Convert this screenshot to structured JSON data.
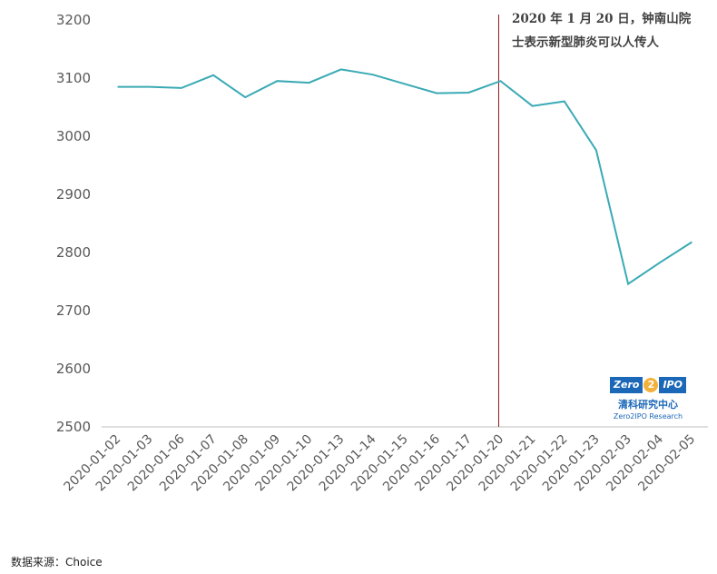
{
  "chart_data": {
    "type": "line",
    "x": [
      "2020-01-02",
      "2020-01-03",
      "2020-01-06",
      "2020-01-07",
      "2020-01-08",
      "2020-01-09",
      "2020-01-10",
      "2020-01-13",
      "2020-01-14",
      "2020-01-15",
      "2020-01-16",
      "2020-01-17",
      "2020-01-20",
      "2020-01-21",
      "2020-01-22",
      "2020-01-23",
      "2020-02-03",
      "2020-02-04",
      "2020-02-05"
    ],
    "series": [
      {
        "values": [
          3085,
          3085,
          3083,
          3105,
          3067,
          3095,
          3092,
          3115,
          3106,
          3090,
          3074,
          3075,
          3095,
          3052,
          3060,
          2976,
          2746,
          2783,
          2818
        ]
      }
    ],
    "ylim": [
      2500,
      3200
    ],
    "yticks": [
      "3200",
      "3100",
      "3000",
      "2900",
      "2800",
      "2700",
      "2600",
      "2500"
    ],
    "grid": false,
    "marker_date": "2020-01-20",
    "annotation": [
      "2020 年 1 月 20 日，钟南山院",
      "士表示新型肺炎可以人传人"
    ],
    "line_color": "#3aaab5",
    "marker_color": "#8b1a1a"
  },
  "logo": {
    "brand_left": "Zero",
    "brand_mid": "2",
    "brand_right": "IPO",
    "cn": "清科研究中心",
    "en": "Zero2IPO Research"
  },
  "source": "数据来源：Choice"
}
